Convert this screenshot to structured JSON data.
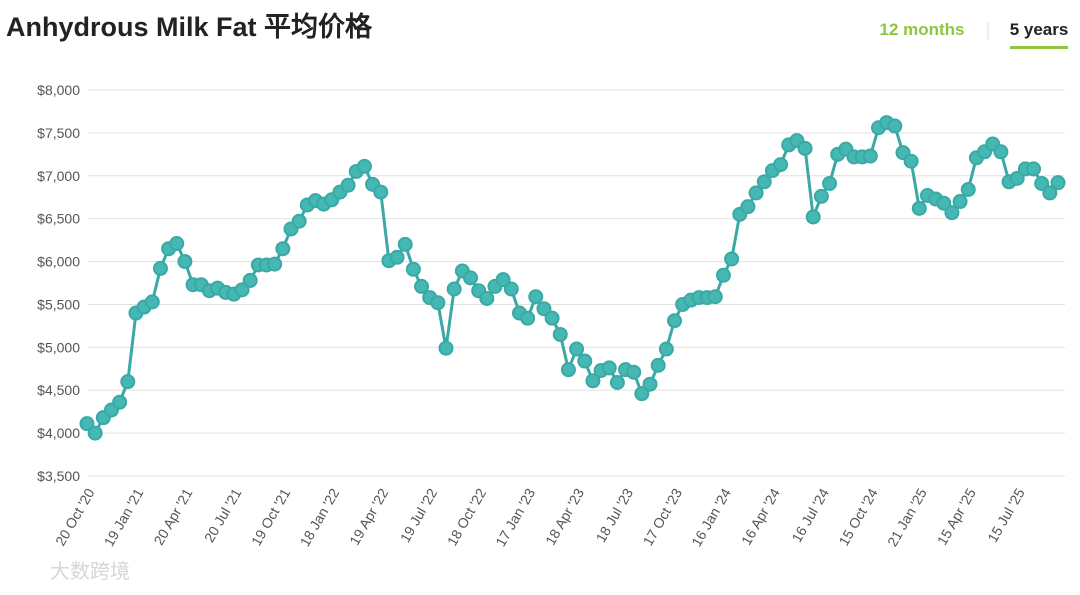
{
  "header": {
    "title": "Anhydrous Milk Fat 平均价格",
    "tabs": [
      "12 months",
      "5 years"
    ]
  },
  "watermark": "大数跨境",
  "chart_data": {
    "type": "line",
    "color": "#3aa9a6",
    "marker_fill": "#45b8b3",
    "grid": true,
    "ylim": [
      3500,
      8000
    ],
    "yticks": [
      {
        "value": 3500,
        "label": "$3,500"
      },
      {
        "value": 4000,
        "label": "$4,000"
      },
      {
        "value": 4500,
        "label": "$4,500"
      },
      {
        "value": 5000,
        "label": "$5,000"
      },
      {
        "value": 5500,
        "label": "$5,500"
      },
      {
        "value": 6000,
        "label": "$6,000"
      },
      {
        "value": 6500,
        "label": "$6,500"
      },
      {
        "value": 7000,
        "label": "$7,000"
      },
      {
        "value": 7500,
        "label": "$7,500"
      },
      {
        "value": 8000,
        "label": "$8,000"
      }
    ],
    "categories": [
      "20 Oct '20",
      null,
      null,
      null,
      null,
      null,
      "19 Jan '21",
      null,
      null,
      null,
      null,
      null,
      "20 Apr '21",
      null,
      null,
      null,
      null,
      null,
      "20 Jul '21",
      null,
      null,
      null,
      null,
      null,
      "19 Oct '21",
      null,
      null,
      null,
      null,
      null,
      "18 Jan '22",
      null,
      null,
      null,
      null,
      null,
      "19 Apr '22",
      null,
      null,
      null,
      null,
      null,
      "19 Jul '22",
      null,
      null,
      null,
      null,
      null,
      "18 Oct '22",
      null,
      null,
      null,
      null,
      null,
      "17 Jan '23",
      null,
      null,
      null,
      null,
      null,
      "18 Apr '23",
      null,
      null,
      null,
      null,
      null,
      "18 Jul '23",
      null,
      null,
      null,
      null,
      null,
      "17 Oct '23",
      null,
      null,
      null,
      null,
      null,
      "16 Jan '24",
      null,
      null,
      null,
      null,
      null,
      "16 Apr '24",
      null,
      null,
      null,
      null,
      null,
      "16 Jul '24",
      null,
      null,
      null,
      null,
      null,
      "15 Oct '24",
      null,
      null,
      null,
      null,
      null,
      "21 Jan '25",
      null,
      null,
      null,
      null,
      null,
      "15 Apr '25",
      null,
      null,
      null,
      null,
      null,
      "15 Jul '25",
      null,
      null,
      null,
      null,
      null
    ],
    "values": [
      4110,
      4000,
      4180,
      4270,
      4360,
      4600,
      5400,
      5470,
      5530,
      5920,
      6150,
      6210,
      6000,
      5730,
      5730,
      5660,
      5690,
      5640,
      5620,
      5670,
      5780,
      5960,
      5960,
      5970,
      6150,
      6380,
      6470,
      6660,
      6710,
      6670,
      6720,
      6810,
      6890,
      7050,
      7110,
      6900,
      6810,
      6010,
      6050,
      6200,
      5910,
      5710,
      5580,
      5520,
      4990,
      5680,
      5890,
      5810,
      5660,
      5570,
      5710,
      5790,
      5680,
      5400,
      5340,
      5590,
      5450,
      5340,
      5150,
      4740,
      4980,
      4840,
      4610,
      4730,
      4760,
      4590,
      4740,
      4710,
      4460,
      4570,
      4790,
      4980,
      5310,
      5500,
      5550,
      5580,
      5580,
      5590,
      5840,
      6030,
      6550,
      6640,
      6800,
      6930,
      7060,
      7130,
      7360,
      7410,
      7320,
      6520,
      6760,
      6910,
      7250,
      7310,
      7220,
      7220,
      7230,
      7560,
      7620,
      7580,
      7270,
      7170,
      6620,
      6770,
      6730,
      6680,
      6570,
      6700,
      6840,
      7210,
      7280,
      7370,
      7280,
      6930,
      6970,
      7080,
      7080,
      6910,
      6800,
      6920
    ]
  }
}
